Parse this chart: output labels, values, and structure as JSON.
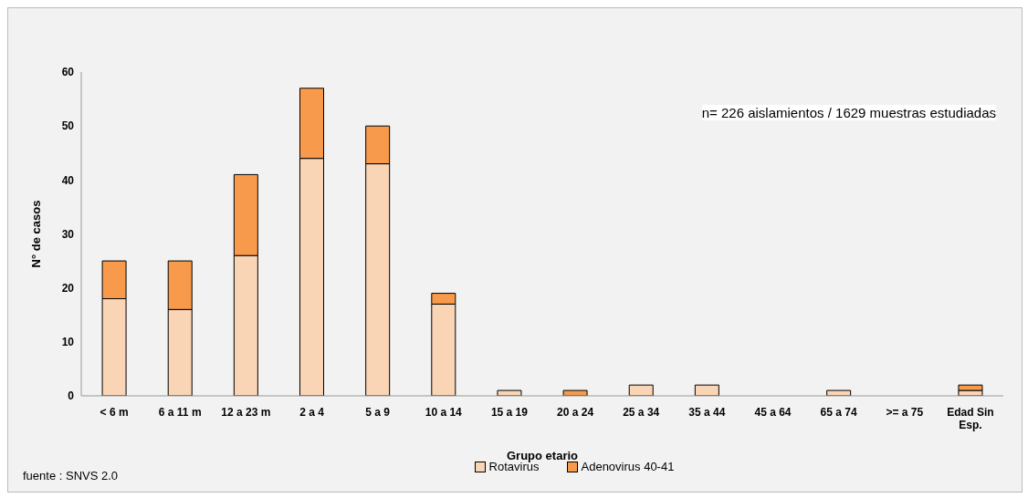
{
  "chart_data": {
    "type": "bar",
    "stacked": true,
    "xlabel": "Grupo etario",
    "ylabel": "N° de casos",
    "categories": [
      "< 6 m",
      "6 a 11 m",
      "12 a 23 m",
      "2 a 4",
      "5 a 9",
      "10 a 14",
      "15 a 19",
      "20 a 24",
      "25 a 34",
      "35 a 44",
      "45 a 64",
      "65 a 74",
      ">= a 75",
      "Edad Sin Esp."
    ],
    "series": [
      {
        "name": "Rotavirus",
        "color": "#fad5b5",
        "values": [
          18,
          16,
          26,
          44,
          43,
          17,
          1,
          0,
          2,
          2,
          0,
          1,
          0,
          1
        ]
      },
      {
        "name": "Adenovirus 40-41",
        "color": "#f79a4b",
        "values": [
          7,
          9,
          15,
          13,
          7,
          2,
          0,
          1,
          0,
          0,
          0,
          0,
          0,
          1
        ]
      }
    ],
    "ylim": [
      0,
      60
    ],
    "yticks": [
      0,
      10,
      20,
      30,
      40,
      50,
      60
    ],
    "grid": false,
    "legend": "bottom",
    "annotations": [
      "n= 226 aislamientos / 1629 muestras estudiadas",
      "fuente : SNVS 2.0"
    ]
  }
}
